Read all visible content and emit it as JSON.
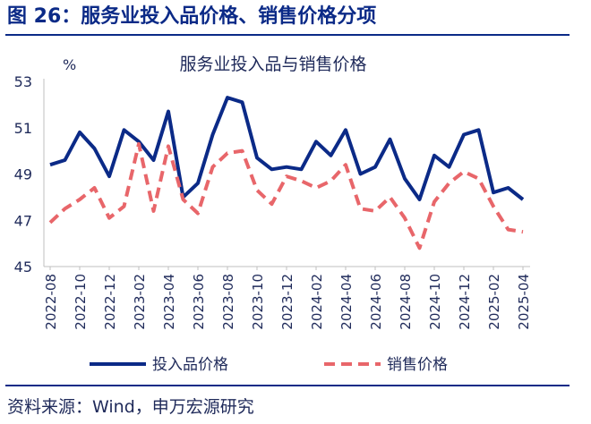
{
  "figure_title": "图 26：服务业投入品价格、销售价格分项",
  "source": "资料来源：Wind，申万宏源研究",
  "colors": {
    "input_line": "#0b2a87",
    "sales_line": "#e8666a",
    "accent": "#0b2a87"
  },
  "chart_data": {
    "type": "line",
    "title": "服务业投入品与销售价格",
    "ylabel": "%",
    "ylim": [
      45,
      53
    ],
    "yticks": [
      45,
      47,
      49,
      51,
      53
    ],
    "xticks": [
      "2022-08",
      "2022-10",
      "2022-12",
      "2023-02",
      "2023-04",
      "2023-06",
      "2023-08",
      "2023-10",
      "2023-12",
      "2024-02",
      "2024-04",
      "2024-06",
      "2024-08",
      "2024-10",
      "2024-12",
      "2025-02",
      "2025-04"
    ],
    "x": [
      "2022-08",
      "2022-09",
      "2022-10",
      "2022-11",
      "2022-12",
      "2023-01",
      "2023-02",
      "2023-03",
      "2023-04",
      "2023-05",
      "2023-06",
      "2023-07",
      "2023-08",
      "2023-09",
      "2023-10",
      "2023-11",
      "2023-12",
      "2024-01",
      "2024-02",
      "2024-03",
      "2024-04",
      "2024-05",
      "2024-06",
      "2024-07",
      "2024-08",
      "2024-09",
      "2024-10",
      "2024-11",
      "2024-12",
      "2025-01",
      "2025-02",
      "2025-03",
      "2025-04"
    ],
    "legend_position": "bottom",
    "grid": false,
    "series": [
      {
        "name": "投入品价格",
        "style": "solid",
        "values": [
          49.4,
          49.6,
          50.8,
          50.1,
          48.9,
          50.9,
          50.4,
          49.6,
          51.7,
          48.0,
          48.6,
          50.7,
          52.3,
          52.1,
          49.7,
          49.2,
          49.3,
          49.2,
          50.4,
          49.8,
          50.9,
          49.0,
          49.3,
          50.5,
          48.8,
          47.9,
          49.8,
          49.3,
          50.7,
          50.9,
          48.2,
          48.4,
          47.9
        ]
      },
      {
        "name": "销售价格",
        "style": "dashed",
        "values": [
          46.9,
          47.5,
          47.9,
          48.4,
          47.1,
          47.6,
          50.3,
          47.4,
          50.2,
          47.9,
          47.3,
          49.3,
          49.9,
          50.0,
          48.3,
          47.7,
          48.9,
          48.7,
          48.4,
          48.7,
          49.4,
          47.5,
          47.4,
          48.0,
          47.1,
          45.8,
          47.8,
          48.6,
          49.1,
          48.8,
          47.6,
          46.6,
          46.5
        ]
      }
    ]
  }
}
